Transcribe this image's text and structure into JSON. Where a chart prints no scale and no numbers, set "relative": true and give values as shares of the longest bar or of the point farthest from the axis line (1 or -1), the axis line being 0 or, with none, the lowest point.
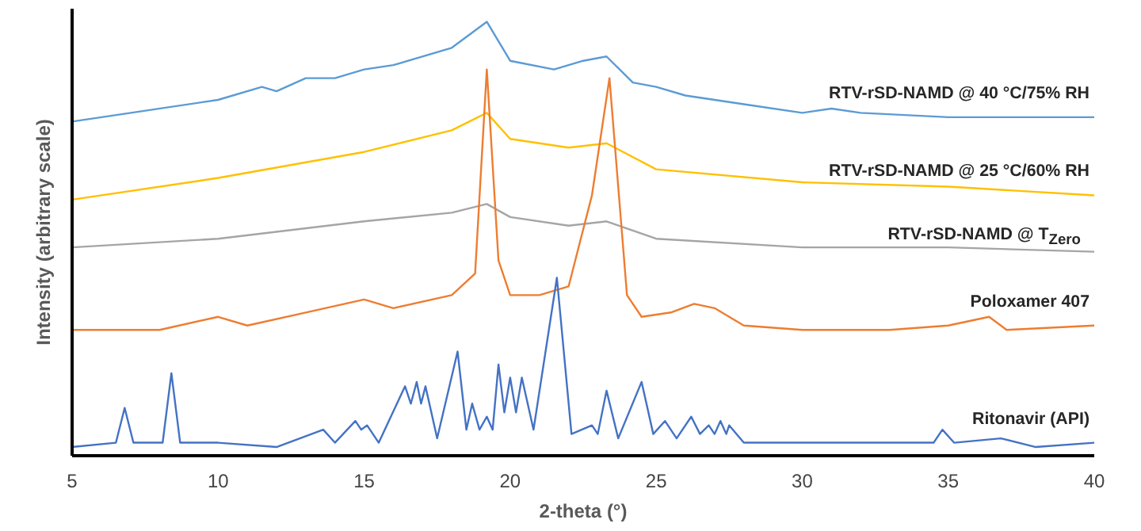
{
  "chart_data": {
    "type": "line",
    "relative": true,
    "xlabel": "2-theta (°)",
    "ylabel": "Intensity (arbitrary scale)",
    "xlim": [
      5,
      40
    ],
    "xticks": [
      5,
      10,
      15,
      20,
      25,
      30,
      35,
      40
    ],
    "grid": false,
    "marker": "none",
    "line_style": "solid",
    "series": [
      {
        "name": "RTV-rSD-NAMD @ 40 °C/75% RH",
        "color": "#5b9bd5",
        "x": [
          5,
          10,
          11.5,
          12,
          13,
          14,
          15,
          16,
          18,
          19.2,
          20,
          21.5,
          22.5,
          23.3,
          24.2,
          25,
          26,
          28,
          30,
          31,
          32,
          35,
          40
        ],
        "values": [
          0.77,
          0.82,
          0.85,
          0.84,
          0.87,
          0.87,
          0.89,
          0.9,
          0.94,
          1.0,
          0.91,
          0.89,
          0.91,
          0.92,
          0.86,
          0.85,
          0.83,
          0.81,
          0.79,
          0.8,
          0.79,
          0.78,
          0.78
        ]
      },
      {
        "name": "RTV-rSD-NAMD @ 25 °C/60% RH",
        "color": "#ffc000",
        "x": [
          5,
          10,
          15,
          18,
          19.2,
          20,
          22,
          23.3,
          25,
          30,
          35,
          40
        ],
        "values": [
          0.59,
          0.64,
          0.7,
          0.75,
          0.79,
          0.73,
          0.71,
          0.72,
          0.66,
          0.63,
          0.62,
          0.6
        ]
      },
      {
        "name": "RTV-rSD-NAMD @ T$_{Zero}$",
        "color": "#a5a5a5",
        "x": [
          5,
          10,
          15,
          18,
          19.2,
          20,
          22,
          23.3,
          25,
          30,
          35,
          40
        ],
        "values": [
          0.48,
          0.5,
          0.54,
          0.56,
          0.58,
          0.55,
          0.53,
          0.54,
          0.5,
          0.48,
          0.48,
          0.47
        ]
      },
      {
        "name": "Poloxamer 407",
        "color": "#ed7d31",
        "x": [
          5,
          8,
          10,
          11,
          13,
          15,
          16,
          18,
          18.8,
          19.2,
          19.6,
          20,
          21,
          22,
          22.8,
          23.4,
          24,
          24.5,
          25.5,
          26.3,
          27,
          28,
          30,
          33,
          35,
          36.4,
          37,
          40
        ],
        "values": [
          0.29,
          0.29,
          0.32,
          0.3,
          0.33,
          0.36,
          0.34,
          0.37,
          0.42,
          0.89,
          0.45,
          0.37,
          0.37,
          0.39,
          0.6,
          0.87,
          0.37,
          0.32,
          0.33,
          0.35,
          0.34,
          0.3,
          0.29,
          0.29,
          0.3,
          0.32,
          0.29,
          0.3
        ]
      },
      {
        "name": "Ritonavir (API)",
        "color": "#4472c4",
        "x": [
          5,
          6.5,
          6.8,
          7.1,
          8.1,
          8.4,
          8.7,
          10,
          12,
          13.6,
          14,
          14.7,
          14.9,
          15.1,
          15.5,
          16.4,
          16.6,
          16.8,
          16.95,
          17.1,
          17.5,
          18.2,
          18.5,
          18.7,
          18.95,
          19.2,
          19.4,
          19.6,
          19.8,
          20.0,
          20.2,
          20.4,
          20.8,
          21.6,
          22.1,
          22.8,
          23.0,
          23.3,
          23.7,
          24.5,
          24.9,
          25.3,
          25.7,
          26.2,
          26.5,
          26.8,
          27.0,
          27.2,
          27.4,
          27.5,
          28,
          30,
          34.5,
          34.8,
          35.2,
          36.8,
          38,
          40
        ],
        "values": [
          0.02,
          0.03,
          0.11,
          0.03,
          0.03,
          0.19,
          0.03,
          0.03,
          0.02,
          0.06,
          0.03,
          0.08,
          0.06,
          0.07,
          0.03,
          0.16,
          0.12,
          0.17,
          0.12,
          0.16,
          0.04,
          0.24,
          0.06,
          0.12,
          0.06,
          0.09,
          0.06,
          0.21,
          0.1,
          0.18,
          0.1,
          0.18,
          0.06,
          0.41,
          0.05,
          0.07,
          0.05,
          0.15,
          0.04,
          0.17,
          0.05,
          0.08,
          0.04,
          0.09,
          0.05,
          0.07,
          0.05,
          0.08,
          0.05,
          0.07,
          0.03,
          0.03,
          0.03,
          0.06,
          0.03,
          0.04,
          0.02,
          0.03
        ]
      }
    ]
  }
}
